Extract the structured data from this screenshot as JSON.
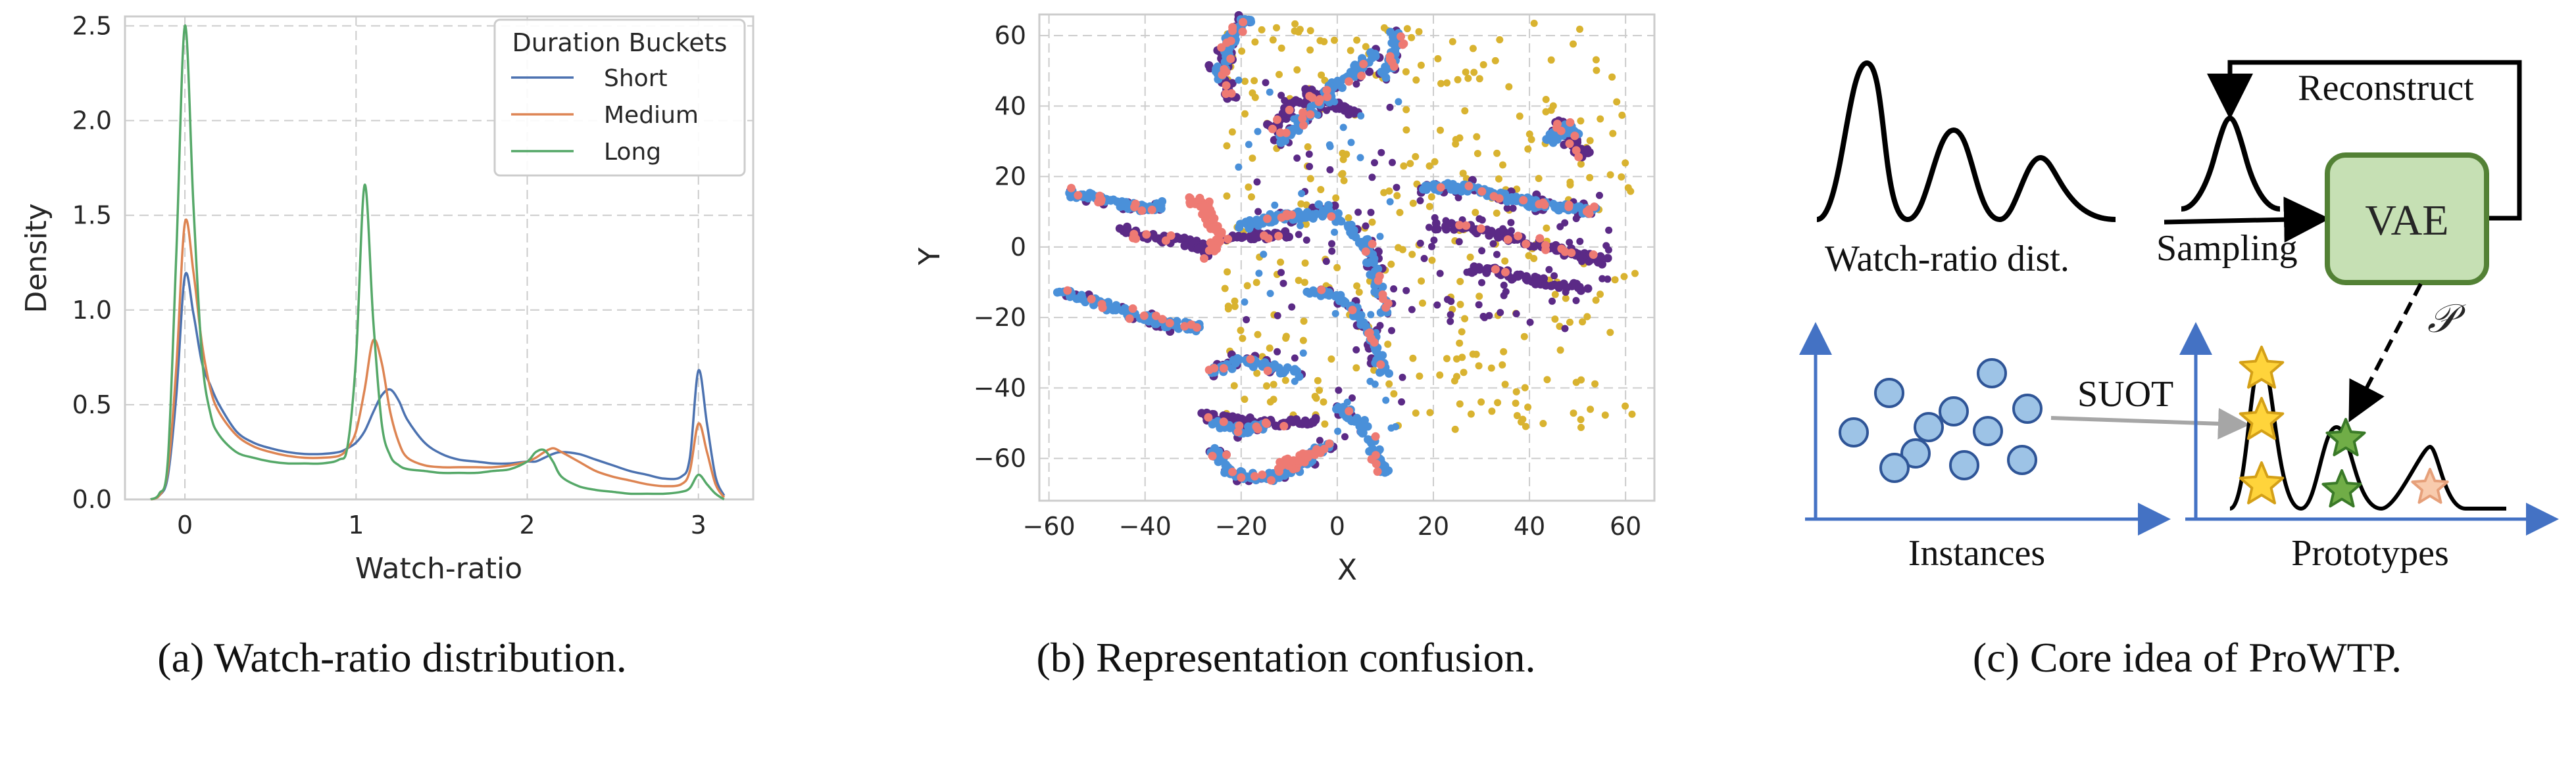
{
  "colors": {
    "short": "#4c72b0",
    "medium": "#dd8452",
    "long": "#55a868",
    "dot_purple": "#5b2a86",
    "dot_blue": "#4a90d9",
    "dot_pink": "#ee7a73",
    "dot_yellow": "#d9b330",
    "vae_fill": "#c6e0b4",
    "vae_stroke": "#538135",
    "instance_fill": "#9dc3e6",
    "instance_stroke": "#2f5597",
    "axis_blue": "#4472c4",
    "star_yellow": "#ffd43b",
    "star_green": "#70ad47",
    "star_peach": "#f8cbad"
  },
  "chart_data": [
    {
      "type": "line",
      "xlabel": "Watch-ratio",
      "ylabel": "Density",
      "xlim": [
        -0.35,
        3.32
      ],
      "ylim": [
        0,
        2.55
      ],
      "xticks": [
        0,
        1,
        2,
        3
      ],
      "yticks": [
        0.0,
        0.5,
        1.0,
        1.5,
        2.0,
        2.5
      ],
      "grid": true,
      "legend_title": "Duration Buckets",
      "legend_position": "top-right",
      "x": [
        -0.2,
        -0.15,
        -0.1,
        -0.05,
        0.0,
        0.05,
        0.1,
        0.15,
        0.2,
        0.3,
        0.4,
        0.5,
        0.6,
        0.7,
        0.8,
        0.9,
        0.95,
        1.0,
        1.05,
        1.1,
        1.15,
        1.2,
        1.25,
        1.3,
        1.4,
        1.5,
        1.6,
        1.7,
        1.8,
        1.9,
        2.0,
        2.05,
        2.1,
        2.15,
        2.2,
        2.3,
        2.4,
        2.5,
        2.6,
        2.7,
        2.8,
        2.9,
        2.95,
        3.0,
        3.05,
        3.1,
        3.15
      ],
      "series": [
        {
          "name": "Short",
          "values": [
            0,
            0.02,
            0.12,
            0.55,
            1.18,
            0.98,
            0.72,
            0.6,
            0.5,
            0.36,
            0.3,
            0.27,
            0.25,
            0.24,
            0.24,
            0.25,
            0.27,
            0.3,
            0.36,
            0.46,
            0.55,
            0.58,
            0.52,
            0.42,
            0.3,
            0.24,
            0.21,
            0.2,
            0.19,
            0.19,
            0.2,
            0.2,
            0.22,
            0.24,
            0.25,
            0.24,
            0.21,
            0.18,
            0.15,
            0.13,
            0.11,
            0.12,
            0.22,
            0.68,
            0.4,
            0.12,
            0.02
          ]
        },
        {
          "name": "Medium",
          "values": [
            0,
            0.02,
            0.15,
            0.7,
            1.46,
            1.2,
            0.82,
            0.58,
            0.46,
            0.34,
            0.28,
            0.25,
            0.23,
            0.22,
            0.22,
            0.23,
            0.27,
            0.36,
            0.58,
            0.84,
            0.72,
            0.46,
            0.3,
            0.22,
            0.18,
            0.17,
            0.17,
            0.17,
            0.17,
            0.18,
            0.2,
            0.22,
            0.25,
            0.27,
            0.25,
            0.2,
            0.15,
            0.12,
            0.1,
            0.08,
            0.07,
            0.08,
            0.15,
            0.4,
            0.25,
            0.08,
            0.01
          ]
        },
        {
          "name": "Long",
          "values": [
            0,
            0.03,
            0.2,
            1.3,
            2.5,
            1.55,
            0.75,
            0.45,
            0.34,
            0.25,
            0.22,
            0.2,
            0.19,
            0.19,
            0.19,
            0.21,
            0.28,
            0.75,
            1.66,
            0.95,
            0.4,
            0.23,
            0.18,
            0.16,
            0.15,
            0.14,
            0.14,
            0.14,
            0.15,
            0.16,
            0.2,
            0.25,
            0.26,
            0.2,
            0.12,
            0.07,
            0.05,
            0.04,
            0.03,
            0.03,
            0.03,
            0.04,
            0.06,
            0.13,
            0.08,
            0.03,
            0.0
          ]
        }
      ]
    },
    {
      "type": "scatter",
      "xlabel": "X",
      "ylabel": "Y",
      "xlim": [
        -62,
        66
      ],
      "ylim": [
        -72,
        66
      ],
      "xticks": [
        -60,
        -40,
        -20,
        0,
        20,
        40,
        60
      ],
      "yticks": [
        -60,
        -40,
        -20,
        0,
        20,
        40,
        60
      ],
      "grid": true,
      "clusters": [
        {
          "type": "strand",
          "color": "blue",
          "points": [
            [
              -56,
              15
            ],
            [
              -50,
              14
            ],
            [
              -45,
              12
            ],
            [
              -40,
              11
            ],
            [
              -36,
              12
            ]
          ]
        },
        {
          "type": "strand",
          "color": "purple",
          "points": [
            [
              -45,
              5
            ],
            [
              -40,
              3
            ],
            [
              -35,
              2
            ],
            [
              -30,
              1
            ],
            [
              -26,
              -2
            ]
          ]
        },
        {
          "type": "strand",
          "color": "pink",
          "points": [
            [
              -30,
              14
            ],
            [
              -27,
              10
            ],
            [
              -25,
              4
            ],
            [
              -26,
              -2
            ]
          ]
        },
        {
          "type": "strand",
          "color": "blue",
          "points": [
            [
              -58,
              -12
            ],
            [
              -52,
              -15
            ],
            [
              -46,
              -18
            ],
            [
              -40,
              -20
            ],
            [
              -34,
              -22
            ],
            [
              -28,
              -23
            ]
          ]
        },
        {
          "type": "strand",
          "color": "blue",
          "points": [
            [
              -25,
              48
            ],
            [
              -23,
              56
            ],
            [
              -21,
              62
            ],
            [
              -18,
              66
            ]
          ]
        },
        {
          "type": "strand",
          "color": "purple",
          "points": [
            [
              -22,
              42
            ],
            [
              -24,
              50
            ],
            [
              -22,
              58
            ]
          ]
        },
        {
          "type": "strand",
          "color": "blue",
          "points": [
            [
              -12,
              30
            ],
            [
              -8,
              35
            ],
            [
              -4,
              40
            ],
            [
              0,
              46
            ],
            [
              4,
              50
            ],
            [
              8,
              55
            ]
          ]
        },
        {
          "type": "strand",
          "color": "purple",
          "points": [
            [
              -14,
              34
            ],
            [
              -10,
              39
            ],
            [
              -6,
              44
            ],
            [
              0,
              40
            ],
            [
              4,
              38
            ]
          ]
        },
        {
          "type": "strand",
          "color": "blue",
          "points": [
            [
              10,
              48
            ],
            [
              12,
              55
            ],
            [
              12,
              62
            ]
          ]
        },
        {
          "type": "strand",
          "color": "blue",
          "points": [
            [
              -20,
              6
            ],
            [
              -14,
              8
            ],
            [
              -8,
              9
            ],
            [
              -3,
              9
            ]
          ]
        },
        {
          "type": "strand",
          "color": "purple",
          "points": [
            [
              -22,
              2
            ],
            [
              -16,
              3
            ],
            [
              -10,
              4
            ]
          ]
        },
        {
          "type": "strand",
          "color": "blue",
          "points": [
            [
              -6,
              -12
            ],
            [
              0,
              -14
            ],
            [
              5,
              -20
            ],
            [
              8,
              -28
            ],
            [
              10,
              -36
            ]
          ]
        },
        {
          "type": "strand",
          "color": "blue",
          "points": [
            [
              -3,
              12
            ],
            [
              2,
              6
            ],
            [
              6,
              0
            ],
            [
              8,
              -8
            ],
            [
              10,
              -20
            ]
          ]
        },
        {
          "type": "strand",
          "color": "blue",
          "points": [
            [
              -26,
              -36
            ],
            [
              -20,
              -32
            ],
            [
              -14,
              -34
            ],
            [
              -8,
              -36
            ]
          ]
        },
        {
          "type": "strand",
          "color": "purple",
          "points": [
            [
              -28,
              -48
            ],
            [
              -22,
              -49
            ],
            [
              -16,
              -50
            ],
            [
              -10,
              -50
            ],
            [
              -4,
              -49
            ]
          ]
        },
        {
          "type": "strand",
          "color": "blue",
          "points": [
            [
              -26,
              -50
            ],
            [
              -20,
              -52
            ],
            [
              -14,
              -51
            ]
          ]
        },
        {
          "type": "strand",
          "color": "blue",
          "points": [
            [
              -26,
              -58
            ],
            [
              -22,
              -64
            ],
            [
              -16,
              -66
            ],
            [
              -10,
              -64
            ],
            [
              -6,
              -60
            ],
            [
              -2,
              -56
            ]
          ]
        },
        {
          "type": "strand",
          "color": "pink",
          "points": [
            [
              -12,
              -62
            ],
            [
              -8,
              -60
            ],
            [
              -4,
              -58
            ]
          ]
        },
        {
          "type": "strand",
          "color": "blue",
          "points": [
            [
              0,
              -45
            ],
            [
              5,
              -50
            ],
            [
              8,
              -58
            ],
            [
              10,
              -65
            ]
          ]
        },
        {
          "type": "strand",
          "color": "blue",
          "points": [
            [
              18,
              17
            ],
            [
              24,
              17
            ],
            [
              30,
              16
            ],
            [
              36,
              14
            ],
            [
              42,
              12
            ],
            [
              48,
              11
            ],
            [
              54,
              10
            ]
          ]
        },
        {
          "type": "strand",
          "color": "purple",
          "points": [
            [
              20,
              6
            ],
            [
              28,
              5
            ],
            [
              36,
              3
            ],
            [
              44,
              0
            ],
            [
              50,
              -2
            ],
            [
              56,
              -4
            ]
          ]
        },
        {
          "type": "strand",
          "color": "purple",
          "points": [
            [
              46,
              36
            ],
            [
              48,
              32
            ],
            [
              50,
              28
            ],
            [
              52,
              26
            ]
          ]
        },
        {
          "type": "strand",
          "color": "blue",
          "points": [
            [
              44,
              30
            ],
            [
              47,
              34
            ],
            [
              50,
              33
            ]
          ]
        },
        {
          "type": "strand",
          "color": "purple",
          "points": [
            [
              28,
              -6
            ],
            [
              36,
              -8
            ],
            [
              44,
              -10
            ],
            [
              52,
              -12
            ]
          ]
        },
        {
          "type": "cloud",
          "color": "yellow",
          "x": [
            -24,
            62
          ],
          "y": [
            -52,
            64
          ],
          "count": 330
        },
        {
          "type": "cloud",
          "color": "purple",
          "x": [
            14,
            58
          ],
          "y": [
            -24,
            16
          ],
          "count": 70
        },
        {
          "type": "cloud",
          "color": "purple",
          "x": [
            -20,
            14
          ],
          "y": [
            -58,
            50
          ],
          "count": 55
        },
        {
          "type": "cloud",
          "color": "blue",
          "x": [
            -22,
            14
          ],
          "y": [
            -56,
            50
          ],
          "count": 40
        }
      ]
    }
  ],
  "captions": {
    "a": "(a) Watch-ratio distribution.",
    "b": "(b) Representation confusion.",
    "c": "(c) Core idea of ProWTP."
  },
  "diagram": {
    "watch_ratio_dist": "Watch-ratio dist.",
    "reconstruct": "Reconstruct",
    "sampling": "Sampling",
    "vae": "VAE",
    "p_symbol": "𝒫",
    "suot": "SUOT",
    "instances": "Instances",
    "prototypes": "Prototypes"
  }
}
